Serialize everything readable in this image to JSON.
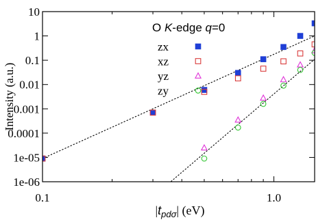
{
  "chart_data": {
    "type": "scatter",
    "title": {
      "prefix": "O ",
      "K": "K",
      "edge": "-edge ",
      "q": "q",
      "eq": "=0"
    },
    "xlabel": {
      "bar_left": "|",
      "t": "t",
      "sub": "pdσ",
      "bar_right": "|",
      "unit": " (eV)"
    },
    "ylabel": "Intensity (a.u.)",
    "x_scale": "log",
    "y_scale": "log",
    "xlim": [
      0.1,
      1.5
    ],
    "ylim": [
      1e-06,
      10
    ],
    "x_ticks": [
      {
        "value": 0.1,
        "label": "0.1"
      },
      {
        "value": 1.0,
        "label": "1.0"
      }
    ],
    "y_ticks": [
      {
        "value": 10,
        "label": "10"
      },
      {
        "value": 1,
        "label": "1"
      },
      {
        "value": 0.1,
        "label": "0.1"
      },
      {
        "value": 0.01,
        "label": "0.01"
      },
      {
        "value": 0.001,
        "label": "0.001"
      },
      {
        "value": 0.0001,
        "label": "0.0001"
      },
      {
        "value": 1e-05,
        "label": "1e-05"
      },
      {
        "value": 1e-06,
        "label": "1e-06"
      }
    ],
    "legend_position": "top-right",
    "series": [
      {
        "name": "zx",
        "marker": "square-filled",
        "color": "#1f3fd6",
        "x": [
          0.1,
          0.3,
          0.5,
          0.7,
          0.9,
          1.1,
          1.3,
          1.5
        ],
        "y": [
          9e-06,
          0.0007,
          0.006,
          0.03,
          0.11,
          0.35,
          1.0,
          3.3
        ]
      },
      {
        "name": "xz",
        "marker": "square-open",
        "color": "#d93b3b",
        "x": [
          0.1,
          0.3,
          0.5,
          0.7,
          0.9,
          1.1,
          1.3,
          1.5
        ],
        "y": [
          9e-06,
          0.0007,
          0.005,
          0.018,
          0.045,
          0.09,
          0.19,
          0.45
        ]
      },
      {
        "name": "yz",
        "marker": "triangle-open",
        "color": "#e033d8",
        "x": [
          0.5,
          0.7,
          0.9,
          1.1,
          1.3,
          1.5
        ],
        "y": [
          2.5e-05,
          0.00035,
          0.0028,
          0.016,
          0.065,
          0.25
        ]
      },
      {
        "name": "zy",
        "marker": "circle-open",
        "color": "#33c533",
        "x": [
          0.5,
          0.7,
          0.9,
          1.1,
          1.3,
          1.5
        ],
        "y": [
          9e-06,
          0.00017,
          0.0016,
          0.009,
          0.04,
          0.2
        ]
      }
    ],
    "fit_lines": [
      {
        "x": [
          0.1,
          1.5
        ],
        "y": [
          9e-06,
          1.0
        ]
      },
      {
        "x": [
          0.32,
          1.5
        ],
        "y": [
          4e-07,
          0.11
        ]
      }
    ]
  }
}
